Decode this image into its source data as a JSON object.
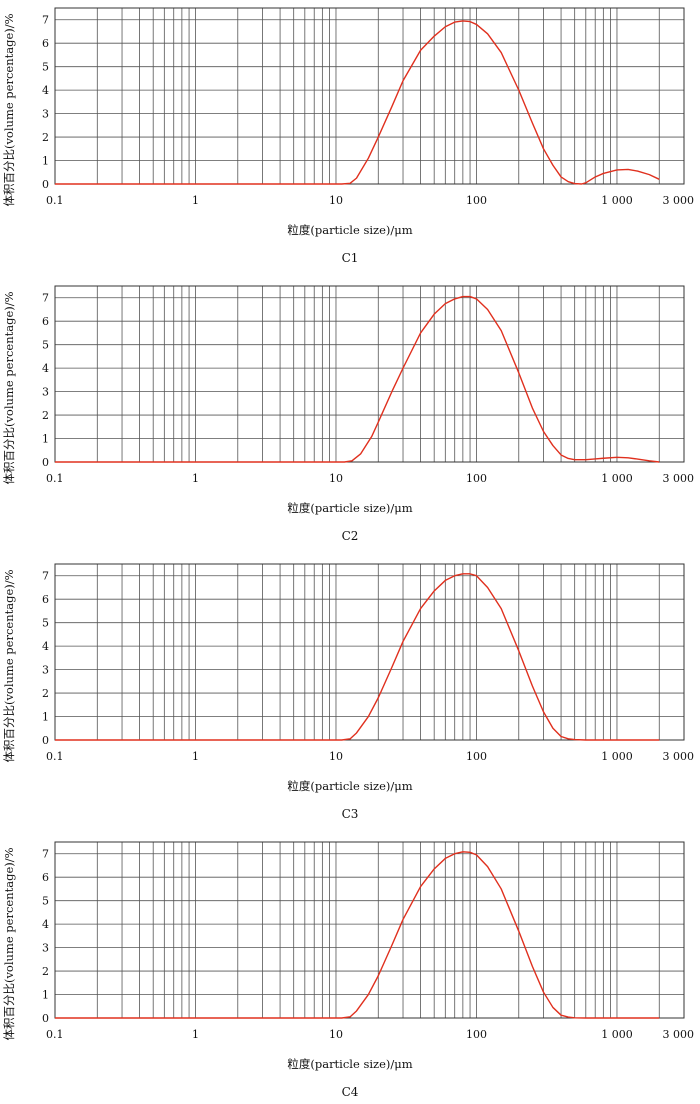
{
  "chart_data": [
    {
      "type": "line",
      "title": "C1",
      "xlabel": "粒度(particle size)/μm",
      "ylabel": "体积百分比(volume percentage)/%",
      "xscale": "log",
      "xlim": [
        0.1,
        3000
      ],
      "ylim": [
        0,
        7.5
      ],
      "x_tick_labels": [
        "0.1",
        "1",
        "10",
        "100",
        "1 000",
        "3 000"
      ],
      "x_tick_values": [
        0.1,
        1,
        10,
        100,
        1000,
        3000
      ],
      "y_tick_labels": [
        "0",
        "1",
        "2",
        "3",
        "4",
        "5",
        "6",
        "7"
      ],
      "grid": true,
      "color": "#e0301e",
      "series": [
        {
          "x": [
            0.1,
            11,
            12.6,
            14,
            17,
            20,
            25,
            30,
            40,
            50,
            60,
            70,
            80,
            90,
            100,
            120,
            150,
            200,
            250,
            300,
            350,
            400,
            450,
            500,
            560,
            600,
            700,
            800,
            1000,
            1200,
            1400,
            1700,
            2000
          ],
          "y": [
            0,
            0,
            0.03,
            0.25,
            1.1,
            2.0,
            3.3,
            4.4,
            5.7,
            6.3,
            6.7,
            6.9,
            6.95,
            6.92,
            6.8,
            6.4,
            5.6,
            4.0,
            2.6,
            1.5,
            0.8,
            0.3,
            0.1,
            0.02,
            0,
            0.05,
            0.3,
            0.45,
            0.6,
            0.62,
            0.55,
            0.4,
            0.2
          ]
        }
      ]
    },
    {
      "type": "line",
      "title": "C2",
      "xlabel": "粒度(particle size)/μm",
      "ylabel": "体积百分比(volume percentage)/%",
      "xscale": "log",
      "xlim": [
        0.1,
        3000
      ],
      "ylim": [
        0,
        7.5
      ],
      "x_tick_labels": [
        "0.1",
        "1",
        "10",
        "100",
        "1 000",
        "3 000"
      ],
      "x_tick_values": [
        0.1,
        1,
        10,
        100,
        1000,
        3000
      ],
      "y_tick_labels": [
        "0",
        "1",
        "2",
        "3",
        "4",
        "5",
        "6",
        "7"
      ],
      "grid": true,
      "color": "#e0301e",
      "series": [
        {
          "x": [
            0.1,
            11.5,
            13,
            15,
            18,
            20,
            25,
            30,
            40,
            50,
            60,
            70,
            80,
            90,
            100,
            120,
            150,
            200,
            250,
            300,
            350,
            400,
            450,
            500,
            600,
            700,
            800,
            1000,
            1200,
            1500,
            1700,
            2000
          ],
          "y": [
            0,
            0,
            0.05,
            0.35,
            1.1,
            1.7,
            3.0,
            4.0,
            5.5,
            6.3,
            6.75,
            6.95,
            7.05,
            7.05,
            6.95,
            6.5,
            5.6,
            3.8,
            2.3,
            1.3,
            0.7,
            0.3,
            0.15,
            0.1,
            0.1,
            0.13,
            0.16,
            0.2,
            0.18,
            0.1,
            0.05,
            0
          ]
        }
      ]
    },
    {
      "type": "line",
      "title": "C3",
      "xlabel": "粒度(particle size)/μm",
      "ylabel": "体积百分比(volume percentage)/%",
      "xscale": "log",
      "xlim": [
        0.1,
        3000
      ],
      "ylim": [
        0,
        7.5
      ],
      "x_tick_labels": [
        "0.1",
        "1",
        "10",
        "100",
        "1 000",
        "3 000"
      ],
      "x_tick_values": [
        0.1,
        1,
        10,
        100,
        1000,
        3000
      ],
      "y_tick_labels": [
        "0",
        "1",
        "2",
        "3",
        "4",
        "5",
        "6",
        "7"
      ],
      "grid": true,
      "color": "#e0301e",
      "series": [
        {
          "x": [
            0.1,
            11,
            12.6,
            14,
            17,
            20,
            25,
            30,
            40,
            50,
            60,
            70,
            80,
            90,
            100,
            120,
            150,
            200,
            250,
            300,
            350,
            400,
            450,
            500,
            600,
            2000
          ],
          "y": [
            0,
            0,
            0.05,
            0.3,
            1.0,
            1.8,
            3.1,
            4.2,
            5.6,
            6.35,
            6.8,
            7.0,
            7.08,
            7.08,
            7.0,
            6.5,
            5.6,
            3.8,
            2.3,
            1.2,
            0.5,
            0.15,
            0.05,
            0.02,
            0,
            0
          ]
        }
      ]
    },
    {
      "type": "line",
      "title": "C4",
      "xlabel": "粒度(particle size)/μm",
      "ylabel": "体积百分比(volume percentage)/%",
      "xscale": "log",
      "xlim": [
        0.1,
        3000
      ],
      "ylim": [
        0,
        7.5
      ],
      "x_tick_labels": [
        "0.1",
        "1",
        "10",
        "100",
        "1 000",
        "3 000"
      ],
      "x_tick_values": [
        0.1,
        1,
        10,
        100,
        1000,
        3000
      ],
      "y_tick_labels": [
        "0",
        "1",
        "2",
        "3",
        "4",
        "5",
        "6",
        "7"
      ],
      "grid": true,
      "color": "#e0301e",
      "series": [
        {
          "x": [
            0.1,
            11,
            12.6,
            14,
            17,
            20,
            25,
            30,
            40,
            50,
            60,
            70,
            80,
            90,
            100,
            120,
            150,
            200,
            250,
            300,
            350,
            400,
            450,
            500,
            600,
            2000
          ],
          "y": [
            0,
            0,
            0.05,
            0.3,
            1.0,
            1.8,
            3.1,
            4.2,
            5.6,
            6.35,
            6.8,
            7.0,
            7.08,
            7.06,
            6.95,
            6.45,
            5.5,
            3.7,
            2.2,
            1.1,
            0.45,
            0.12,
            0.04,
            0.01,
            0,
            0
          ]
        }
      ]
    }
  ]
}
